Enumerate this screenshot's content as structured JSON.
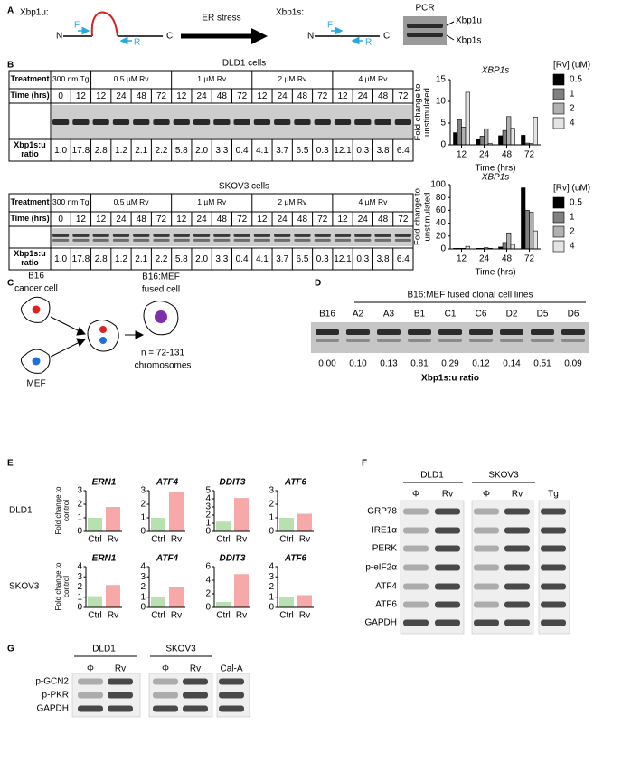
{
  "A": {
    "label": "A",
    "unspliced": "Xbp1u:",
    "spliced": "Xbp1s:",
    "stimulus": "ER stress",
    "n_end": "N",
    "c_end": "C",
    "forward": "F",
    "reverse": "R",
    "gel_title": "PCR",
    "gel_bands": [
      "Xbp1u",
      "Xbp1s"
    ]
  },
  "B": {
    "label": "B",
    "tables": [
      {
        "title": "DLD1 cells",
        "row_labels": [
          "Treatment",
          "Time (hrs)",
          "Xbp1s:u ratio"
        ],
        "treatments": [
          "300 nm Tg",
          "0.5 µM Rv",
          "1 µM Rv",
          "2 µM Rv",
          "4 µM Rv"
        ],
        "times": [
          0,
          12,
          12,
          24,
          48,
          72,
          12,
          24,
          48,
          72,
          12,
          24,
          48,
          72,
          12,
          24,
          48,
          72
        ],
        "ratios": [
          "1.0",
          "17.8",
          "2.8",
          "1.2",
          "2.1",
          "2.2",
          "5.8",
          "2.0",
          "3.3",
          "0.4",
          "4.1",
          "3.7",
          "6.5",
          "0.3",
          "12.1",
          "0.3",
          "3.8",
          "6.4"
        ]
      },
      {
        "title": "SKOV3 cells",
        "row_labels": [
          "Treatment",
          "Time (hrs)",
          "Xbp1s:u ratio"
        ],
        "treatments": [
          "300 nm Tg",
          "0.5 µM Rv",
          "1 µM Rv",
          "2 µM Rv",
          "4 µM Rv"
        ],
        "times": [
          0,
          12,
          12,
          24,
          48,
          72,
          12,
          24,
          48,
          72,
          12,
          24,
          48,
          72,
          12,
          24,
          48,
          72
        ],
        "ratios": [
          "1.0",
          "17.8",
          "2.8",
          "1.2",
          "2.1",
          "2.2",
          "5.8",
          "2.0",
          "3.3",
          "0.4",
          "4.1",
          "3.7",
          "6.5",
          "0.3",
          "12.1",
          "0.3",
          "3.8",
          "6.4"
        ]
      }
    ],
    "charts": [
      {
        "type": "bar",
        "title": "XBP1s",
        "ylabel": "Fold change to unstimulated",
        "xlabel": "Time (hrs)",
        "legend_title": "[Rv] (uM)",
        "categories": [
          "12",
          "24",
          "48",
          "72"
        ],
        "ylim": [
          0,
          15
        ],
        "yticks": [
          0,
          5,
          10,
          15
        ],
        "series": [
          {
            "name": "0.5",
            "color": "#000000",
            "values": [
              2.8,
              1.2,
              2.1,
              2.2
            ]
          },
          {
            "name": "1",
            "color": "#808080",
            "values": [
              5.8,
              2.0,
              3.3,
              0.4
            ]
          },
          {
            "name": "2",
            "color": "#b0b0b0",
            "values": [
              4.1,
              3.7,
              6.5,
              0.3
            ]
          },
          {
            "name": "4",
            "color": "#e4e4e4",
            "values": [
              12.1,
              0.3,
              3.8,
              6.4
            ]
          }
        ]
      },
      {
        "type": "bar",
        "title": "XBP1s",
        "ylabel": "Fold change to unstimulated",
        "xlabel": "Time (hrs)",
        "legend_title": "[Rv] (uM)",
        "categories": [
          "12",
          "24",
          "48",
          "72"
        ],
        "ylim": [
          0,
          100
        ],
        "yticks": [
          0,
          20,
          40,
          60,
          80,
          100
        ],
        "series": [
          {
            "name": "0.5",
            "color": "#000000",
            "values": [
              1,
              1,
              3,
              95
            ]
          },
          {
            "name": "1",
            "color": "#808080",
            "values": [
              1,
              1,
              10,
              60
            ]
          },
          {
            "name": "2",
            "color": "#b0b0b0",
            "values": [
              1,
              2,
              25,
              57
            ]
          },
          {
            "name": "4",
            "color": "#e4e4e4",
            "values": [
              4,
              1,
              7,
              28
            ]
          }
        ]
      }
    ]
  },
  "C": {
    "label": "C",
    "cancer_cell": [
      "B16",
      "cancer cell"
    ],
    "normal_cell": "MEF",
    "fused_cell": [
      "B16:MEF",
      "fused cell"
    ],
    "chromosomes": [
      "n = 72-131",
      "chromosomes"
    ]
  },
  "D": {
    "label": "D",
    "title": "B16:MEF fused clonal cell lines",
    "lanes": [
      "B16",
      "A2",
      "A3",
      "B1",
      "C1",
      "C6",
      "D2",
      "D5",
      "D6"
    ],
    "ratios": [
      "0.00",
      "0.10",
      "0.13",
      "0.81",
      "0.29",
      "0.12",
      "0.14",
      "0.51",
      "0.09"
    ],
    "ratio_label": "Xbp1s:u ratio"
  },
  "E": {
    "label": "E",
    "ylabel": "Fold change to control",
    "bar_colors": [
      "#b9e0b1",
      "#f7a8a8"
    ],
    "rows": [
      {
        "name": "DLD1",
        "charts": [
          {
            "type": "bar",
            "title": "ERN1",
            "categories": [
              "Ctrl",
              "Rv"
            ],
            "values": [
              1.0,
              1.8
            ],
            "ylim": [
              0,
              3
            ],
            "yticks": [
              0,
              1,
              2,
              3
            ]
          },
          {
            "type": "bar",
            "title": "ATF4",
            "categories": [
              "Ctrl",
              "Rv"
            ],
            "values": [
              1.0,
              2.9
            ],
            "ylim": [
              0,
              3
            ],
            "yticks": [
              0,
              1,
              2,
              3
            ]
          },
          {
            "type": "bar",
            "title": "DDIT3",
            "categories": [
              "Ctrl",
              "Rv"
            ],
            "values": [
              1.2,
              4.1
            ],
            "ylim": [
              0,
              5
            ],
            "yticks": [
              0,
              1,
              2,
              3,
              4,
              5
            ]
          },
          {
            "type": "bar",
            "title": "ATF6",
            "categories": [
              "Ctrl",
              "Rv"
            ],
            "values": [
              1.0,
              1.3
            ],
            "ylim": [
              0,
              3
            ],
            "yticks": [
              0,
              1,
              2,
              3
            ]
          }
        ]
      },
      {
        "name": "SKOV3",
        "charts": [
          {
            "type": "bar",
            "title": "ERN1",
            "categories": [
              "Ctrl",
              "Rv"
            ],
            "values": [
              1.1,
              2.2
            ],
            "ylim": [
              0,
              4
            ],
            "yticks": [
              0,
              1,
              2,
              3,
              4
            ]
          },
          {
            "type": "bar",
            "title": "ATF4",
            "categories": [
              "Ctrl",
              "Rv"
            ],
            "values": [
              1.0,
              2.0
            ],
            "ylim": [
              0,
              4
            ],
            "yticks": [
              0,
              1,
              2,
              3,
              4
            ]
          },
          {
            "type": "bar",
            "title": "DDIT3",
            "categories": [
              "Ctrl",
              "Rv"
            ],
            "values": [
              0.8,
              4.9
            ],
            "ylim": [
              0,
              6
            ],
            "yticks": [
              0,
              2,
              4,
              6
            ]
          },
          {
            "type": "bar",
            "title": "ATF6",
            "categories": [
              "Ctrl",
              "Rv"
            ],
            "values": [
              1.0,
              1.2
            ],
            "ylim": [
              0,
              4
            ],
            "yticks": [
              0,
              1,
              2,
              3,
              4
            ]
          }
        ]
      }
    ]
  },
  "F": {
    "label": "F",
    "groups": [
      "DLD1",
      "SKOV3"
    ],
    "lanes": [
      "Φ",
      "Rv",
      "Φ",
      "Rv",
      "Tg"
    ],
    "proteins": [
      "GRP78",
      "IRE1α",
      "PERK",
      "p-eIF2α",
      "ATF4",
      "ATF6",
      "GAPDH"
    ]
  },
  "G": {
    "label": "G",
    "groups": [
      "DLD1",
      "SKOV3"
    ],
    "lanes": [
      "Φ",
      "Rv",
      "Φ",
      "Rv",
      "Cal-A"
    ],
    "proteins": [
      "p-GCN2",
      "p-PKR",
      "GAPDH"
    ]
  }
}
